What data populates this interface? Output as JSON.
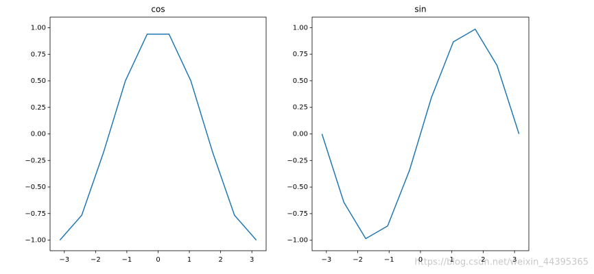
{
  "chart_data": [
    {
      "type": "line",
      "title": "cos",
      "x": [
        -3.1416,
        -2.4435,
        -1.7453,
        -1.0472,
        -0.3491,
        0.3491,
        1.0472,
        1.7453,
        2.4435,
        3.1416
      ],
      "series": [
        {
          "color": "#1f77b4",
          "values": [
            -1.0,
            -0.766,
            -0.1736,
            0.5,
            0.9397,
            0.9397,
            0.5,
            -0.1736,
            -0.766,
            -1.0
          ]
        }
      ],
      "xlim": [
        -3.456,
        3.456
      ],
      "ylim": [
        -1.1,
        1.1
      ],
      "xticks": [
        {
          "value": -3,
          "label": "−3"
        },
        {
          "value": -2,
          "label": "−2"
        },
        {
          "value": -1,
          "label": "−1"
        },
        0,
        1,
        2,
        3
      ],
      "yticks": [
        {
          "value": -1,
          "label": "−1.00"
        },
        {
          "value": -0.75,
          "label": "−0.75"
        },
        {
          "value": -0.5,
          "label": "−0.50"
        },
        {
          "value": -0.25,
          "label": "−0.25"
        },
        {
          "value": 0,
          "label": "0.00"
        },
        {
          "value": 0.25,
          "label": "0.25"
        },
        {
          "value": 0.5,
          "label": "0.50"
        },
        {
          "value": 0.75,
          "label": "0.75"
        },
        {
          "value": 1,
          "label": "1.00"
        }
      ]
    },
    {
      "type": "line",
      "title": "sin",
      "x": [
        -3.1416,
        -2.4435,
        -1.7453,
        -1.0472,
        -0.3491,
        0.3491,
        1.0472,
        1.7453,
        2.4435,
        3.1416
      ],
      "series": [
        {
          "color": "#1f77b4",
          "values": [
            0.0,
            -0.6428,
            -0.9848,
            -0.866,
            -0.342,
            0.342,
            0.866,
            0.9848,
            0.6428,
            0.0
          ]
        }
      ],
      "xlim": [
        -3.456,
        3.456
      ],
      "ylim": [
        -1.0985,
        1.0985
      ],
      "xticks": [
        {
          "value": -3,
          "label": "−3"
        },
        {
          "value": -2,
          "label": "−2"
        },
        {
          "value": -1,
          "label": "−1"
        },
        0,
        1,
        2,
        3
      ],
      "yticks": [
        {
          "value": -1,
          "label": "−1.00"
        },
        {
          "value": -0.75,
          "label": "−0.75"
        },
        {
          "value": -0.5,
          "label": "−0.50"
        },
        {
          "value": -0.25,
          "label": "−0.25"
        },
        {
          "value": 0,
          "label": "0.00"
        },
        {
          "value": 0.25,
          "label": "0.25"
        },
        {
          "value": 0.5,
          "label": "0.50"
        },
        {
          "value": 0.75,
          "label": "0.75"
        },
        {
          "value": 1,
          "label": "1.00"
        }
      ]
    }
  ],
  "watermark": "https://blog.csdn.net/weixin_44395365"
}
